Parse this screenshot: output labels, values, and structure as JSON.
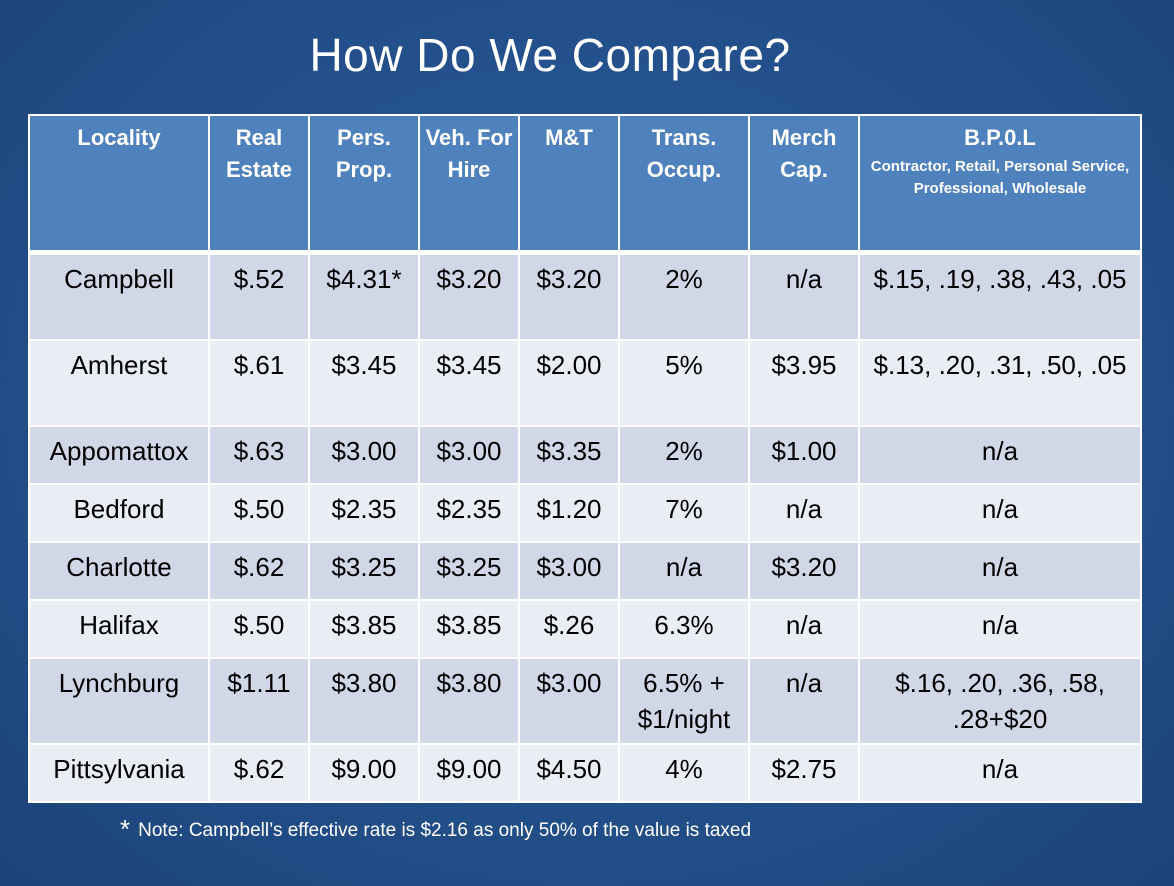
{
  "title": "How Do We Compare?",
  "columns": [
    {
      "label": "Locality"
    },
    {
      "label": "Real Estate"
    },
    {
      "label": "Pers. Prop."
    },
    {
      "label": "Veh. For Hire"
    },
    {
      "label": "M&T"
    },
    {
      "label": "Trans. Occup."
    },
    {
      "label": "Merch Cap."
    },
    {
      "label": "B.P.0.L",
      "sub": "Contractor, Retail, Personal Service, Professional, Wholesale"
    }
  ],
  "rows": [
    {
      "locality": "Campbell",
      "real_estate": "$.52",
      "pers_prop": "$4.31*",
      "veh_for_hire": "$3.20",
      "mt": "$3.20",
      "trans_occup": "2%",
      "merch_cap": "n/a",
      "bpol": "$.15, .19, .38, .43, .05"
    },
    {
      "locality": "Amherst",
      "real_estate": "$.61",
      "pers_prop": "$3.45",
      "veh_for_hire": "$3.45",
      "mt": "$2.00",
      "trans_occup": "5%",
      "merch_cap": "$3.95",
      "bpol": "$.13, .20, .31, .50, .05"
    },
    {
      "locality": "Appomattox",
      "real_estate": "$.63",
      "pers_prop": "$3.00",
      "veh_for_hire": "$3.00",
      "mt": "$3.35",
      "trans_occup": "2%",
      "merch_cap": "$1.00",
      "bpol": "n/a"
    },
    {
      "locality": "Bedford",
      "real_estate": "$.50",
      "pers_prop": "$2.35",
      "veh_for_hire": "$2.35",
      "mt": "$1.20",
      "trans_occup": "7%",
      "merch_cap": "n/a",
      "bpol": "n/a"
    },
    {
      "locality": "Charlotte",
      "real_estate": "$.62",
      "pers_prop": "$3.25",
      "veh_for_hire": "$3.25",
      "mt": "$3.00",
      "trans_occup": "n/a",
      "merch_cap": "$3.20",
      "bpol": "n/a"
    },
    {
      "locality": "Halifax",
      "real_estate": "$.50",
      "pers_prop": "$3.85",
      "veh_for_hire": "$3.85",
      "mt": "$.26",
      "trans_occup": "6.3%",
      "merch_cap": "n/a",
      "bpol": "n/a"
    },
    {
      "locality": "Lynchburg",
      "real_estate": "$1.11",
      "pers_prop": "$3.80",
      "veh_for_hire": "$3.80",
      "mt": "$3.00",
      "trans_occup": "6.5% + $1/night",
      "merch_cap": "n/a",
      "bpol": "$.16, .20, .36, .58, .28+$20"
    },
    {
      "locality": "Pittsylvania",
      "real_estate": "$.62",
      "pers_prop": "$9.00",
      "veh_for_hire": "$9.00",
      "mt": "$4.50",
      "trans_occup": "4%",
      "merch_cap": "$2.75",
      "bpol": "n/a"
    }
  ],
  "note": {
    "marker": "*",
    "text": "Note: Campbell’s effective rate is $2.16 as only 50% of the value is taxed"
  }
}
